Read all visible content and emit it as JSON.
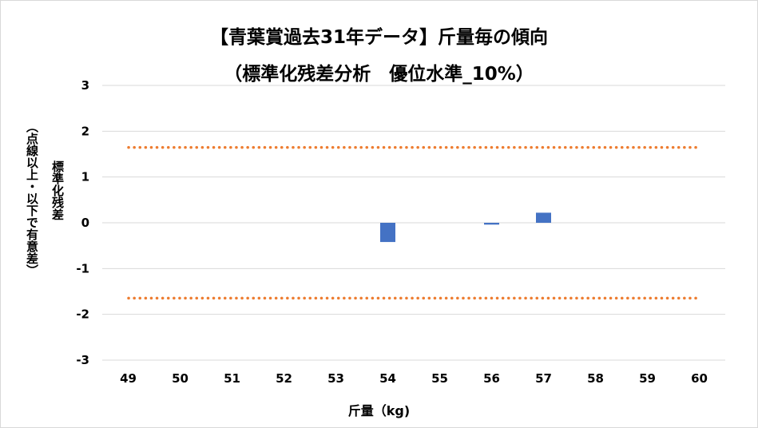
{
  "chart_data": {
    "type": "bar",
    "title": "【青葉賞過去31年データ】斤量毎の傾向",
    "subtitle": "（標準化残差分析　優位水準_10%）",
    "xlabel": "斤量（kg)",
    "ylabel": "標準化残差",
    "ylabel_note": "（点線以上・以下で有意差）",
    "categories": [
      "49",
      "50",
      "51",
      "52",
      "53",
      "54",
      "55",
      "56",
      "57",
      "58",
      "59",
      "60"
    ],
    "values": [
      0,
      0,
      0,
      0,
      0,
      -0.42,
      0,
      -0.04,
      0.22,
      0,
      0,
      0
    ],
    "ylim": [
      -3,
      3
    ],
    "yticks": [
      3,
      2,
      1,
      0,
      -1,
      -2,
      -3
    ],
    "threshold_lines": [
      1.645,
      -1.645
    ],
    "grid": true,
    "colors": {
      "bar": "#4472c4",
      "threshold": "#ed7d31",
      "grid": "#d9d9d9"
    }
  }
}
